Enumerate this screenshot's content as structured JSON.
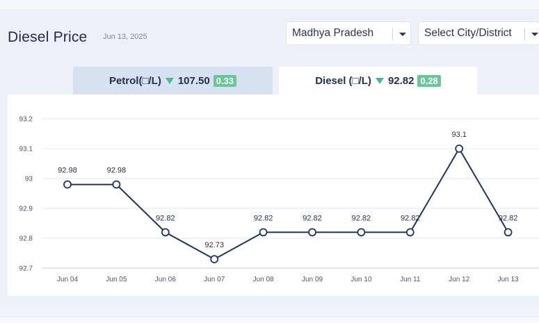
{
  "header": {
    "title": "Diesel Price",
    "date": "Jun 13, 2025",
    "state_select": "Madhya Pradesh",
    "city_select": "Select City/District"
  },
  "tabs": [
    {
      "label": "Petrol(□/L)",
      "price": "107.50",
      "change": "0.33",
      "trend": "down",
      "active": false
    },
    {
      "label": "Diesel (□/L)",
      "price": "92.82",
      "change": "0.28",
      "trend": "down",
      "active": true
    }
  ],
  "colors": {
    "line": "#1c355e",
    "accent_green": "#6cc49a",
    "arrow_green": "#4fb98d"
  },
  "chart_data": {
    "type": "line",
    "categories": [
      "Jun 04",
      "Jun 05",
      "Jun 06",
      "Jun 07",
      "Jun 08",
      "Jun 09",
      "Jun 10",
      "Jun 11",
      "Jun 12",
      "Jun 13"
    ],
    "values": [
      92.98,
      92.98,
      92.82,
      92.73,
      92.82,
      92.82,
      92.82,
      92.82,
      93.1,
      92.82
    ],
    "data_labels": [
      "92.98",
      "92.98",
      "92.82",
      "92.73",
      "92.82",
      "92.82",
      "92.82",
      "92.82",
      "93.1",
      "92.82"
    ],
    "y_ticks": [
      "92.7",
      "92.8",
      "92.9",
      "93",
      "93.1",
      "93.2"
    ],
    "ylim": [
      92.7,
      93.2
    ],
    "grid": true,
    "title": "",
    "xlabel": "",
    "ylabel": ""
  }
}
